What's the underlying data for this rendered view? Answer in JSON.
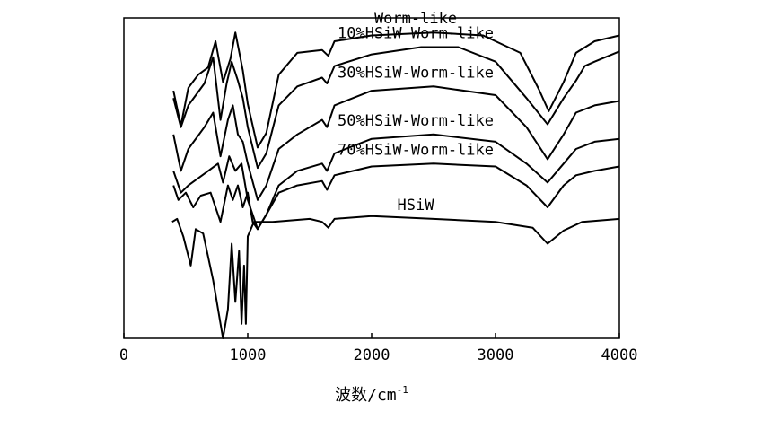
{
  "chart_data": {
    "type": "line",
    "title": "",
    "xlabel": "波数/cm",
    "xlabel_superscript": "-1",
    "ylabel": "",
    "xlim": [
      0,
      4000
    ],
    "x_ticks": [
      0,
      1000,
      2000,
      3000,
      4000
    ],
    "x_tick_labels": [
      "0",
      "1000",
      "2000",
      "3000",
      "4000"
    ],
    "grid": false,
    "legend": "none; series names printed directly above each trace",
    "y_axis_labels": "none (relative intensity, traces vertically offset)",
    "line_color": "#000000",
    "series": [
      {
        "name": "Worm-like",
        "offset": 0.86,
        "points": [
          [
            400,
            0.44
          ],
          [
            460,
            0.2
          ],
          [
            520,
            0.46
          ],
          [
            600,
            0.55
          ],
          [
            680,
            0.6
          ],
          [
            740,
            0.78
          ],
          [
            800,
            0.5
          ],
          [
            860,
            0.66
          ],
          [
            900,
            0.84
          ],
          [
            960,
            0.58
          ],
          [
            1000,
            0.35
          ],
          [
            1080,
            0.05
          ],
          [
            1150,
            0.15
          ],
          [
            1250,
            0.55
          ],
          [
            1400,
            0.7
          ],
          [
            1600,
            0.72
          ],
          [
            1650,
            0.68
          ],
          [
            1700,
            0.78
          ],
          [
            2000,
            0.82
          ],
          [
            2500,
            0.84
          ],
          [
            2900,
            0.82
          ],
          [
            3200,
            0.7
          ],
          [
            3350,
            0.45
          ],
          [
            3430,
            0.3
          ],
          [
            3550,
            0.5
          ],
          [
            3650,
            0.7
          ],
          [
            3800,
            0.78
          ],
          [
            4000,
            0.82
          ]
        ]
      },
      {
        "name": "10%HSiW-Worm-like",
        "offset": 0.65,
        "points": [
          [
            400,
            0.6
          ],
          [
            460,
            0.4
          ],
          [
            520,
            0.55
          ],
          [
            650,
            0.7
          ],
          [
            720,
            0.88
          ],
          [
            780,
            0.45
          ],
          [
            830,
            0.7
          ],
          [
            870,
            0.85
          ],
          [
            920,
            0.72
          ],
          [
            960,
            0.6
          ],
          [
            1000,
            0.4
          ],
          [
            1080,
            0.12
          ],
          [
            1150,
            0.22
          ],
          [
            1250,
            0.55
          ],
          [
            1400,
            0.68
          ],
          [
            1600,
            0.74
          ],
          [
            1640,
            0.7
          ],
          [
            1700,
            0.82
          ],
          [
            2000,
            0.9
          ],
          [
            2400,
            0.95
          ],
          [
            2700,
            0.95
          ],
          [
            3000,
            0.85
          ],
          [
            3250,
            0.6
          ],
          [
            3420,
            0.42
          ],
          [
            3550,
            0.6
          ],
          [
            3650,
            0.72
          ],
          [
            3720,
            0.82
          ],
          [
            3800,
            0.85
          ],
          [
            4000,
            0.92
          ]
        ]
      },
      {
        "name": "30%HSiW-Worm-like",
        "offset": 0.45,
        "points": [
          [
            400,
            0.55
          ],
          [
            460,
            0.3
          ],
          [
            520,
            0.45
          ],
          [
            650,
            0.6
          ],
          [
            720,
            0.7
          ],
          [
            780,
            0.4
          ],
          [
            840,
            0.65
          ],
          [
            880,
            0.75
          ],
          [
            920,
            0.55
          ],
          [
            960,
            0.5
          ],
          [
            1000,
            0.35
          ],
          [
            1080,
            0.1
          ],
          [
            1150,
            0.2
          ],
          [
            1250,
            0.45
          ],
          [
            1400,
            0.55
          ],
          [
            1600,
            0.65
          ],
          [
            1640,
            0.6
          ],
          [
            1700,
            0.75
          ],
          [
            2000,
            0.85
          ],
          [
            2500,
            0.88
          ],
          [
            3000,
            0.82
          ],
          [
            3250,
            0.6
          ],
          [
            3420,
            0.38
          ],
          [
            3550,
            0.55
          ],
          [
            3650,
            0.7
          ],
          [
            3800,
            0.75
          ],
          [
            4000,
            0.78
          ]
        ]
      },
      {
        "name": "50%HSiW-Worm-like",
        "offset": 0.25,
        "points": [
          [
            400,
            0.5
          ],
          [
            460,
            0.35
          ],
          [
            520,
            0.4
          ],
          [
            650,
            0.48
          ],
          [
            760,
            0.55
          ],
          [
            800,
            0.42
          ],
          [
            850,
            0.6
          ],
          [
            900,
            0.5
          ],
          [
            950,
            0.55
          ],
          [
            1000,
            0.3
          ],
          [
            1080,
            0.1
          ],
          [
            1150,
            0.2
          ],
          [
            1250,
            0.4
          ],
          [
            1400,
            0.5
          ],
          [
            1600,
            0.55
          ],
          [
            1640,
            0.5
          ],
          [
            1700,
            0.62
          ],
          [
            2000,
            0.72
          ],
          [
            2500,
            0.75
          ],
          [
            3000,
            0.7
          ],
          [
            3250,
            0.55
          ],
          [
            3420,
            0.42
          ],
          [
            3550,
            0.55
          ],
          [
            3650,
            0.65
          ],
          [
            3800,
            0.7
          ],
          [
            4000,
            0.72
          ]
        ]
      },
      {
        "name": "70%HSiW-Worm-like",
        "offset": 0.1,
        "points": [
          [
            400,
            0.55
          ],
          [
            440,
            0.45
          ],
          [
            500,
            0.5
          ],
          [
            560,
            0.4
          ],
          [
            620,
            0.48
          ],
          [
            700,
            0.5
          ],
          [
            780,
            0.3
          ],
          [
            840,
            0.55
          ],
          [
            880,
            0.45
          ],
          [
            920,
            0.55
          ],
          [
            960,
            0.4
          ],
          [
            1000,
            0.5
          ],
          [
            1040,
            0.3
          ],
          [
            1080,
            0.25
          ],
          [
            1150,
            0.35
          ],
          [
            1250,
            0.5
          ],
          [
            1400,
            0.55
          ],
          [
            1600,
            0.58
          ],
          [
            1640,
            0.52
          ],
          [
            1700,
            0.62
          ],
          [
            2000,
            0.68
          ],
          [
            2500,
            0.7
          ],
          [
            3000,
            0.68
          ],
          [
            3250,
            0.55
          ],
          [
            3420,
            0.4
          ],
          [
            3550,
            0.55
          ],
          [
            3650,
            0.62
          ],
          [
            3800,
            0.65
          ],
          [
            4000,
            0.68
          ]
        ]
      },
      {
        "name": "HSiW",
        "offset": -0.3,
        "points": [
          [
            390,
            0.7
          ],
          [
            430,
            0.72
          ],
          [
            480,
            0.6
          ],
          [
            540,
            0.4
          ],
          [
            580,
            0.65
          ],
          [
            640,
            0.62
          ],
          [
            720,
            0.3
          ],
          [
            800,
            -0.1
          ],
          [
            840,
            0.1
          ],
          [
            870,
            0.55
          ],
          [
            900,
            0.15
          ],
          [
            930,
            0.5
          ],
          [
            950,
            0.0
          ],
          [
            970,
            0.4
          ],
          [
            985,
            0.0
          ],
          [
            1000,
            0.6
          ],
          [
            1050,
            0.7
          ],
          [
            1200,
            0.7
          ],
          [
            1500,
            0.72
          ],
          [
            1600,
            0.7
          ],
          [
            1650,
            0.66
          ],
          [
            1700,
            0.72
          ],
          [
            2000,
            0.74
          ],
          [
            2500,
            0.72
          ],
          [
            3000,
            0.7
          ],
          [
            3300,
            0.66
          ],
          [
            3420,
            0.55
          ],
          [
            3550,
            0.64
          ],
          [
            3700,
            0.7
          ],
          [
            4000,
            0.72
          ]
        ]
      }
    ]
  }
}
